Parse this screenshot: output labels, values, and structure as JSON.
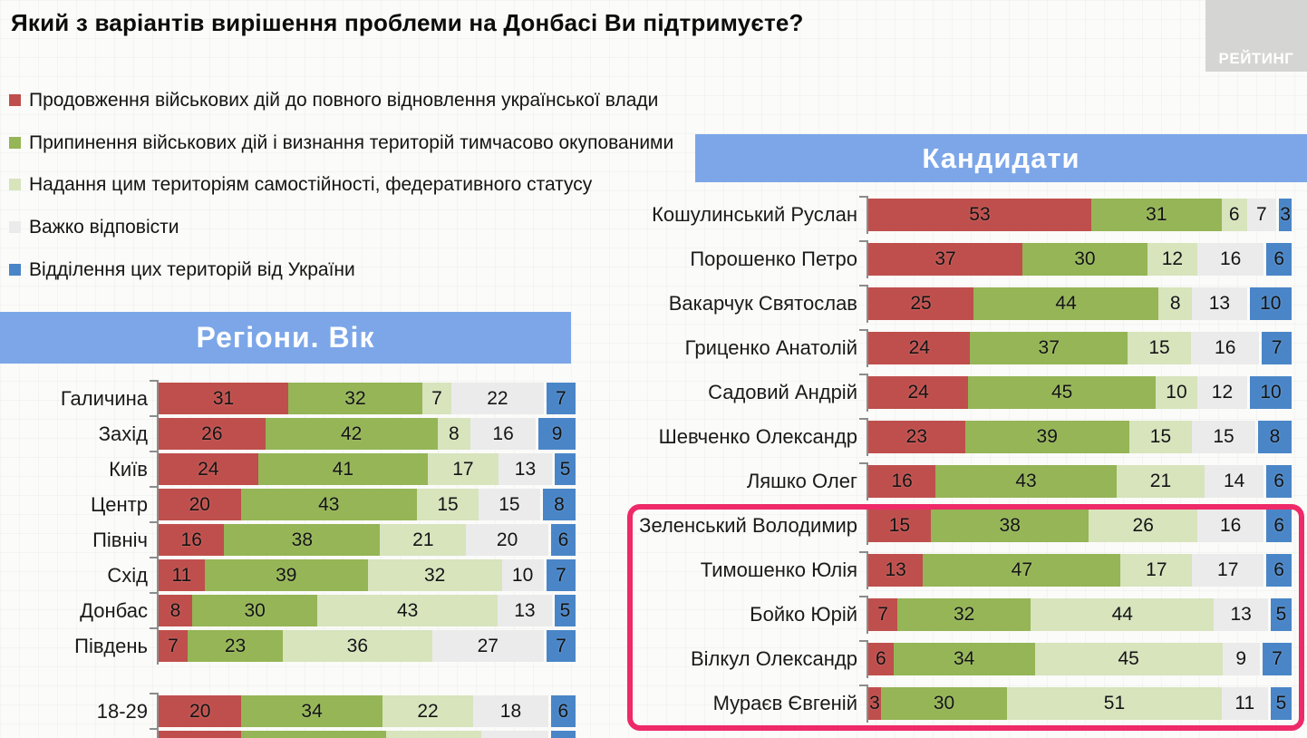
{
  "title": "Який з варіантів вирішення проблеми на Донбасі Ви підтримуєте?",
  "logo": "РЕЙТИНГ",
  "colors": {
    "red": "#bf4f4c",
    "green": "#95b556",
    "lightgreen": "#d7e4bc",
    "gray": "#ebebeb",
    "blue": "#4a86c7",
    "banner": "#7ca6e8",
    "highlight": "#ee2a68",
    "logo_bg": "#d5d5d3"
  },
  "legend": [
    {
      "color_key": "red",
      "label": "Продовження військових дій до повного відновлення української влади"
    },
    {
      "color_key": "green",
      "label": "Припинення військових дій і визнання територій тимчасово окупованими"
    },
    {
      "color_key": "lightgreen",
      "label": "Надання цим територіям самостійності, федеративного статусу"
    },
    {
      "color_key": "gray",
      "label": "Важко відповісти"
    },
    {
      "color_key": "blue",
      "label": "Відділення цих територій від України"
    }
  ],
  "chart_data": [
    {
      "type": "bar",
      "stacked": true,
      "orientation": "horizontal",
      "unit": "%",
      "xlim": [
        0,
        100
      ],
      "title": "Регіони. Вік",
      "series": [
        "Продовження військових дій до повного відновлення української влади",
        "Припинення військових дій і визнання територій тимчасово окупованими",
        "Надання цим територіям самостійності, федеративного статусу",
        "Важко відповісти",
        "Відділення цих територій від України"
      ],
      "series_keys": [
        "red",
        "green",
        "lightgreen",
        "gray",
        "blue"
      ],
      "groups": [
        {
          "name": "regions",
          "categories": [
            "Галичина",
            "Захід",
            "Київ",
            "Центр",
            "Північ",
            "Схід",
            "Донбас",
            "Південь"
          ],
          "rows": [
            [
              31,
              32,
              7,
              22,
              7
            ],
            [
              26,
              42,
              8,
              16,
              9
            ],
            [
              24,
              41,
              17,
              13,
              5
            ],
            [
              20,
              43,
              15,
              15,
              8
            ],
            [
              16,
              38,
              21,
              20,
              6
            ],
            [
              11,
              39,
              32,
              10,
              7
            ],
            [
              8,
              30,
              43,
              13,
              5
            ],
            [
              7,
              23,
              36,
              27,
              7
            ]
          ]
        },
        {
          "name": "age",
          "categories": [
            "18-29"
          ],
          "rows": [
            [
              20,
              34,
              22,
              18,
              6
            ]
          ]
        }
      ],
      "clipped_next_row_estimate": [
        20,
        35,
        23,
        16,
        6
      ]
    },
    {
      "type": "bar",
      "stacked": true,
      "orientation": "horizontal",
      "unit": "%",
      "xlim": [
        0,
        100
      ],
      "title": "Кандидати",
      "series": [
        "Продовження військових дій до повного відновлення української влади",
        "Припинення військових дій і визнання територій тимчасово окупованими",
        "Надання цим територіям самостійності, федеративного статусу",
        "Важко відповісти",
        "Відділення цих територій від України"
      ],
      "series_keys": [
        "red",
        "green",
        "lightgreen",
        "gray",
        "blue"
      ],
      "categories": [
        "Кошулинський Руслан",
        "Порошенко Петро",
        "Вакарчук Святослав",
        "Гриценко Анатолій",
        "Садовий Андрій",
        "Шевченко Олександр",
        "Ляшко Олег",
        "Зеленський Володимир",
        "Тимошенко Юлія",
        "Бойко Юрій",
        "Вілкул Олександр",
        "Мураєв Євгеній"
      ],
      "rows": [
        [
          53,
          31,
          6,
          7,
          3
        ],
        [
          37,
          30,
          12,
          16,
          6
        ],
        [
          25,
          44,
          8,
          13,
          10
        ],
        [
          24,
          37,
          15,
          16,
          7
        ],
        [
          24,
          45,
          10,
          12,
          10
        ],
        [
          23,
          39,
          15,
          15,
          8
        ],
        [
          16,
          43,
          21,
          14,
          6
        ],
        [
          15,
          38,
          26,
          16,
          6
        ],
        [
          13,
          47,
          17,
          17,
          6
        ],
        [
          7,
          32,
          44,
          13,
          5
        ],
        [
          6,
          34,
          45,
          9,
          7
        ],
        [
          3,
          30,
          51,
          11,
          5
        ]
      ],
      "highlight": {
        "color": "#ee2a68",
        "rows": [
          "Зеленський Володимир",
          "Тимошенко Юлія",
          "Бойко Юрій",
          "Вілкул Олександр",
          "Мураєв Євгеній"
        ]
      }
    }
  ]
}
